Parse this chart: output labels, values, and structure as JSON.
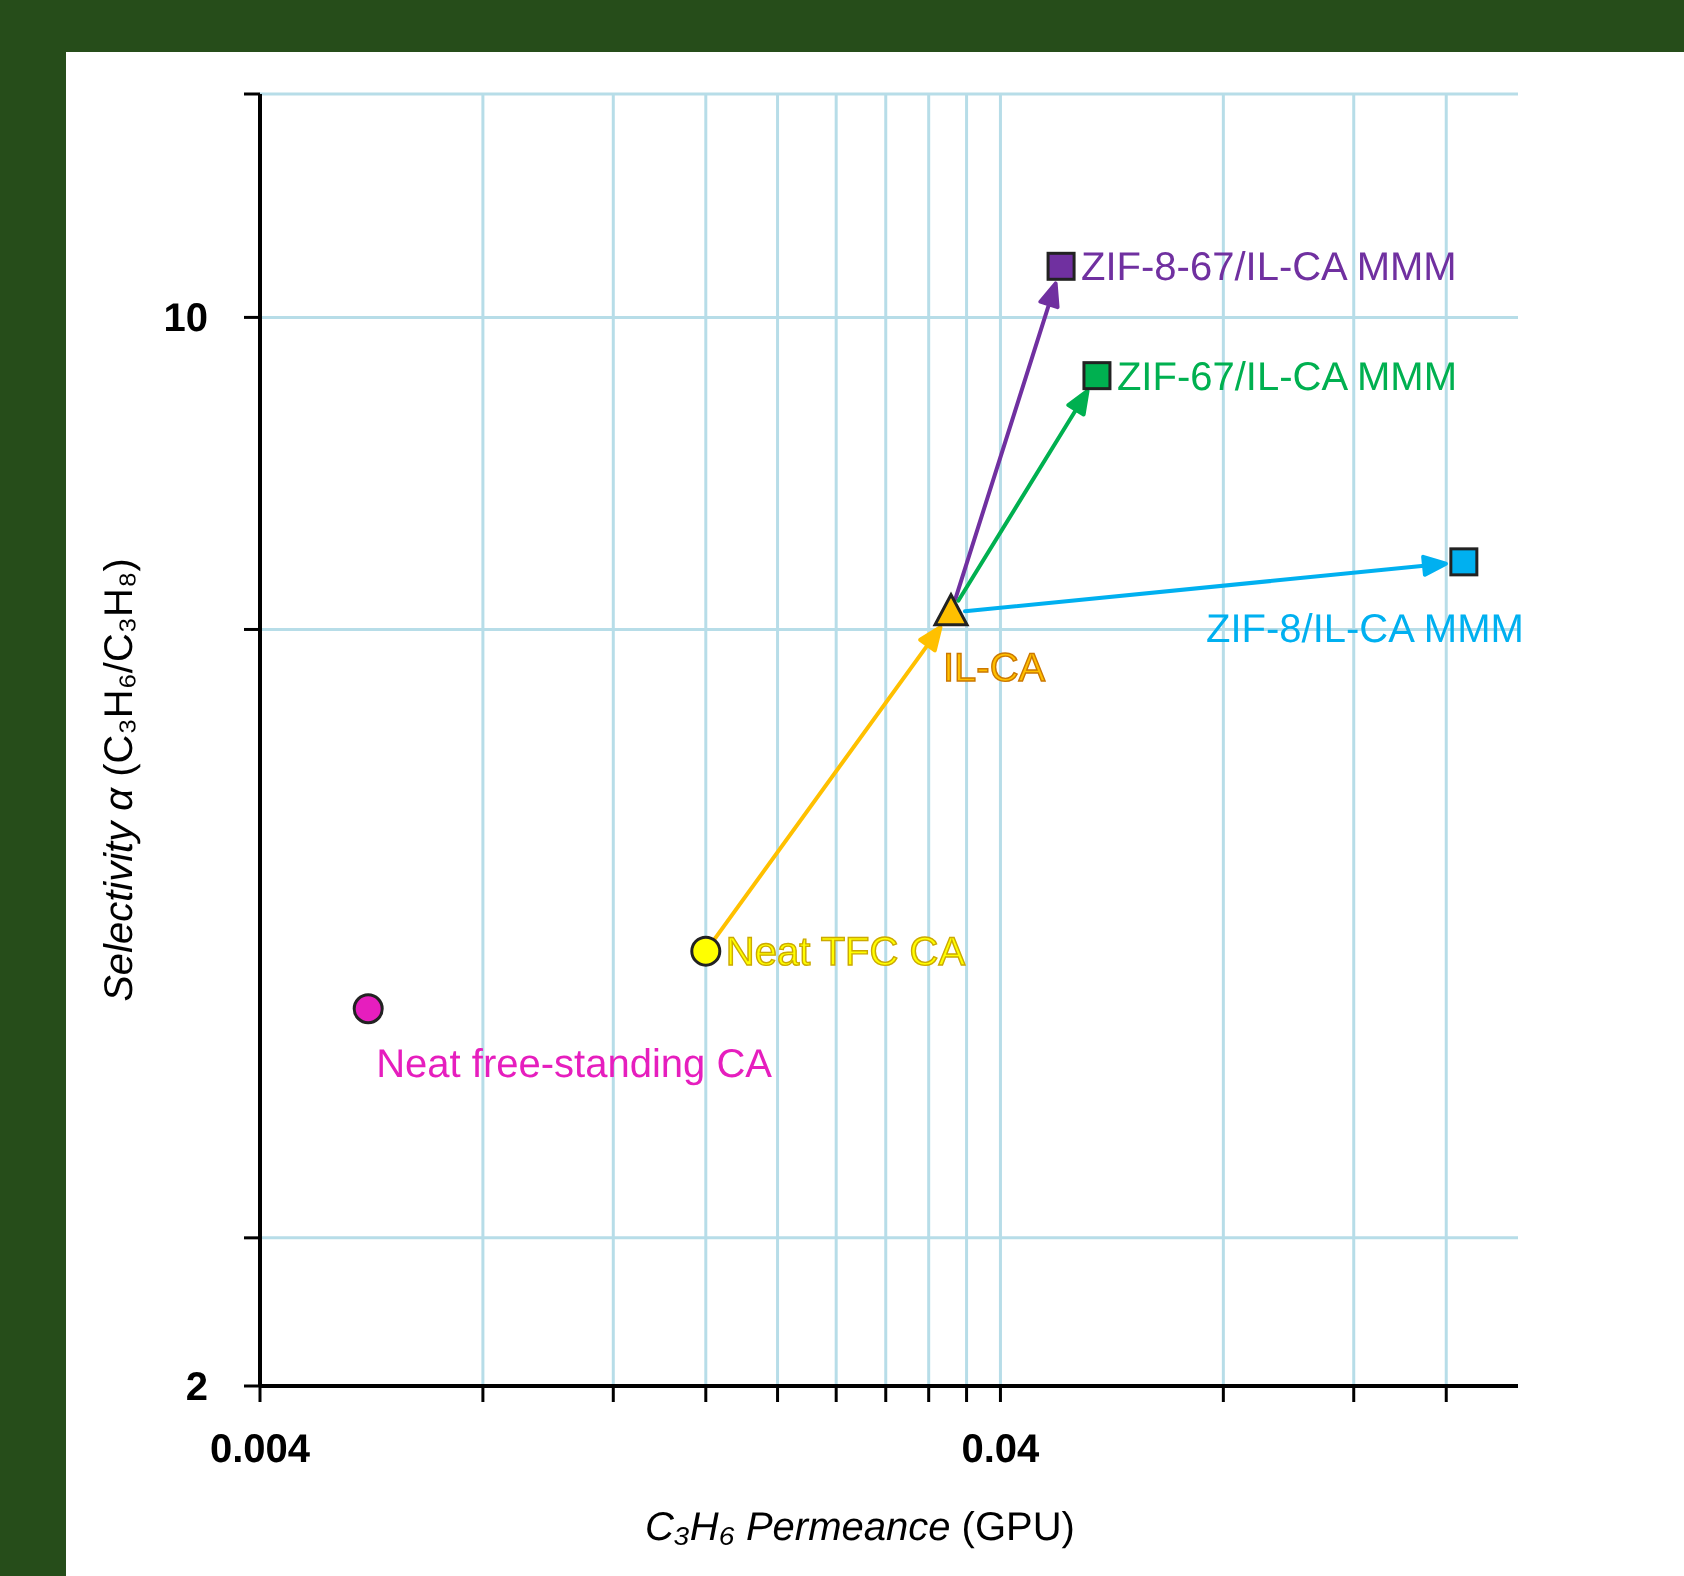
{
  "chart_data": {
    "type": "scatter",
    "xlabel": "C₃H₆ Permeance (GPU)",
    "ylabel": "Selectivity α (C₃H₆/C₃H₈)",
    "log": "xy",
    "grid": true,
    "xlim": [
      0.004,
      0.2
    ],
    "xticks": [
      0.004,
      {
        "value": 0.008,
        "label": null
      },
      {
        "value": 0.012,
        "label": null
      },
      {
        "value": 0.016,
        "label": null
      },
      {
        "value": 0.02,
        "label": null
      },
      {
        "value": 0.024,
        "label": null
      },
      {
        "value": 0.028,
        "label": null
      },
      {
        "value": 0.032,
        "label": null
      },
      {
        "value": 0.036,
        "label": null
      },
      0.04,
      {
        "value": 0.08,
        "label": null
      },
      {
        "value": 0.12,
        "label": null
      },
      {
        "value": 0.16,
        "label": null
      }
    ],
    "ylim": [
      2,
      14
    ],
    "yticks": [
      2,
      {
        "value": 2.5,
        "label": null
      },
      {
        "value": 6.25,
        "label": null
      },
      10,
      {
        "value": 14,
        "label": null
      }
    ],
    "series": [
      {
        "name": "Neat free-standing CA",
        "color": "#e61ebe",
        "marker": "circle",
        "x": [
          0.0056
        ],
        "values": [
          3.53
        ]
      },
      {
        "name": "Neat TFC CA",
        "color": "#ffff00",
        "marker": "circle",
        "x": [
          0.016
        ],
        "values": [
          3.85
        ]
      },
      {
        "name": "IL-CA",
        "color": "#ffc000",
        "marker": "triangle",
        "x": [
          0.0343
        ],
        "values": [
          6.41
        ]
      },
      {
        "name": "ZIF-8-67/IL-CA MMM",
        "color": "#7030a0",
        "marker": "square",
        "x": [
          0.0483
        ],
        "values": [
          10.8
        ]
      },
      {
        "name": "ZIF-67/IL-CA MMM",
        "color": "#00b050",
        "marker": "square",
        "x": [
          0.054
        ],
        "values": [
          9.16
        ]
      },
      {
        "name": "ZIF-8/IL-CA MMM",
        "color": "#00b0f0",
        "marker": "square",
        "x": [
          0.169
        ],
        "values": [
          6.92
        ]
      }
    ]
  }
}
